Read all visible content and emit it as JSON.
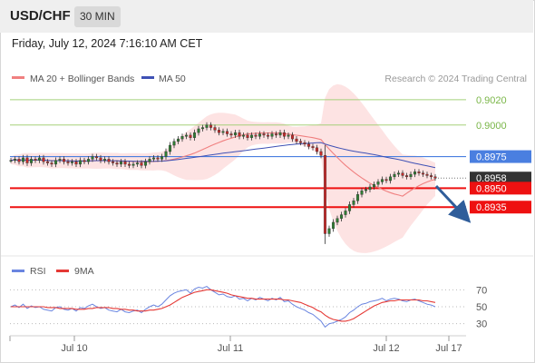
{
  "header": {
    "pair": "USD/CHF",
    "timeframe": "30 MIN"
  },
  "datetime": "Friday, July 12, 2024 7:16:10 AM CET",
  "legend": {
    "ma20": "MA 20 + Bollinger Bands",
    "ma50": "MA 50",
    "credit": "Research © 2024 Trading Central"
  },
  "rsi_legend": {
    "rsi": "RSI",
    "ma9": "9MA"
  },
  "colors": {
    "ma20": "#f08080",
    "ma50": "#3f51b5",
    "band": "#fcdcdc",
    "resistance": "#a5d07a",
    "pivot": "#4a7fe0",
    "support": "#ee1111",
    "current": "#333333",
    "arrow": "#2f5d9a",
    "rsi": "#6a85e0",
    "ma9": "#e53935",
    "candle_up": "#2e7d32",
    "candle_down": "#c62828"
  },
  "chart_data": {
    "type": "candlestick",
    "x_ticks": [
      "Jul 10",
      "Jul 11",
      "Jul 12",
      "Jul 17"
    ],
    "price_ylim": [
      0.8905,
      0.903
    ],
    "levels": [
      {
        "label": "0.9020",
        "value": 0.902,
        "kind": "resistance"
      },
      {
        "label": "0.9000",
        "value": 0.9,
        "kind": "resistance"
      },
      {
        "label": "0.8975",
        "value": 0.8975,
        "kind": "pivot"
      },
      {
        "label": "0.8958",
        "value": 0.8958,
        "kind": "current"
      },
      {
        "label": "0.8950",
        "value": 0.895,
        "kind": "support"
      },
      {
        "label": "0.8935",
        "value": 0.8935,
        "kind": "support"
      }
    ],
    "series": [
      {
        "name": "Close",
        "values": [
          0.8972,
          0.8973,
          0.8971,
          0.8974,
          0.897,
          0.8973,
          0.8972,
          0.8974,
          0.8971,
          0.897,
          0.8969,
          0.8972,
          0.8973,
          0.8971,
          0.897,
          0.8971,
          0.8969,
          0.8972,
          0.8971,
          0.8973,
          0.8975,
          0.8974,
          0.8972,
          0.8973,
          0.8971,
          0.897,
          0.8969,
          0.8971,
          0.8969,
          0.8968,
          0.8969,
          0.897,
          0.8968,
          0.8971,
          0.8973,
          0.8974,
          0.8973,
          0.8975,
          0.8979,
          0.8984,
          0.8987,
          0.8989,
          0.8991,
          0.8992,
          0.899,
          0.8994,
          0.8997,
          0.8998,
          0.9,
          0.8998,
          0.8996,
          0.8994,
          0.8995,
          0.8993,
          0.8992,
          0.8994,
          0.8991,
          0.8992,
          0.899,
          0.8992,
          0.8991,
          0.8993,
          0.8992,
          0.8991,
          0.8993,
          0.8992,
          0.8994,
          0.8991,
          0.8992,
          0.8989,
          0.8987,
          0.8986,
          0.8985,
          0.8983,
          0.8982,
          0.8979,
          0.8976,
          0.8914,
          0.8918,
          0.8923,
          0.8926,
          0.8929,
          0.8932,
          0.8937,
          0.894,
          0.8945,
          0.8948,
          0.8949,
          0.8951,
          0.8953,
          0.8955,
          0.8957,
          0.8956,
          0.8959,
          0.8961,
          0.8962,
          0.896,
          0.8959,
          0.8961,
          0.8963,
          0.8962,
          0.8961,
          0.896,
          0.8959,
          0.8958
        ]
      },
      {
        "name": "MA 20"
      },
      {
        "name": "MA 50"
      }
    ],
    "rsi": {
      "ticks": [
        70,
        50,
        30
      ],
      "ylim": [
        20,
        80
      ],
      "values": [
        50,
        52,
        49,
        53,
        48,
        51,
        49,
        50,
        47,
        46,
        45,
        49,
        50,
        47,
        46,
        48,
        45,
        49,
        48,
        51,
        53,
        50,
        48,
        49,
        46,
        45,
        44,
        47,
        44,
        43,
        45,
        46,
        43,
        47,
        50,
        52,
        50,
        53,
        58,
        63,
        66,
        68,
        69,
        70,
        66,
        71,
        73,
        72,
        74,
        70,
        67,
        64,
        65,
        62,
        61,
        63,
        59,
        60,
        57,
        60,
        58,
        61,
        59,
        57,
        60,
        58,
        61,
        56,
        57,
        53,
        50,
        48,
        46,
        43,
        41,
        37,
        33,
        26,
        30,
        31,
        33,
        35,
        38,
        43,
        46,
        50,
        53,
        54,
        56,
        57,
        58,
        60,
        57,
        59,
        60,
        59,
        57,
        56,
        58,
        59,
        57,
        55,
        53,
        52,
        50
      ],
      "ma9": [
        50,
        50,
        50,
        50,
        50,
        50,
        50,
        50,
        50,
        49,
        49,
        49,
        48,
        48,
        48,
        48,
        47,
        47,
        47,
        48,
        48,
        49,
        49,
        49,
        49,
        48,
        48,
        47,
        47,
        46,
        46,
        45,
        45,
        45,
        46,
        46,
        47,
        48,
        50,
        52,
        55,
        58,
        61,
        63,
        65,
        67,
        68,
        69,
        70,
        70,
        69,
        68,
        67,
        66,
        64,
        63,
        62,
        61,
        60,
        60,
        59,
        59,
        59,
        59,
        59,
        59,
        59,
        58,
        58,
        57,
        56,
        55,
        53,
        51,
        49,
        46,
        44,
        40,
        37,
        35,
        34,
        33,
        33,
        34,
        36,
        39,
        42,
        45,
        48,
        51,
        53,
        55,
        56,
        57,
        57,
        58,
        58,
        58,
        58,
        58,
        58,
        57,
        57,
        56,
        55
      ]
    }
  },
  "rsi_ticks": [
    "70",
    "50",
    "30"
  ]
}
